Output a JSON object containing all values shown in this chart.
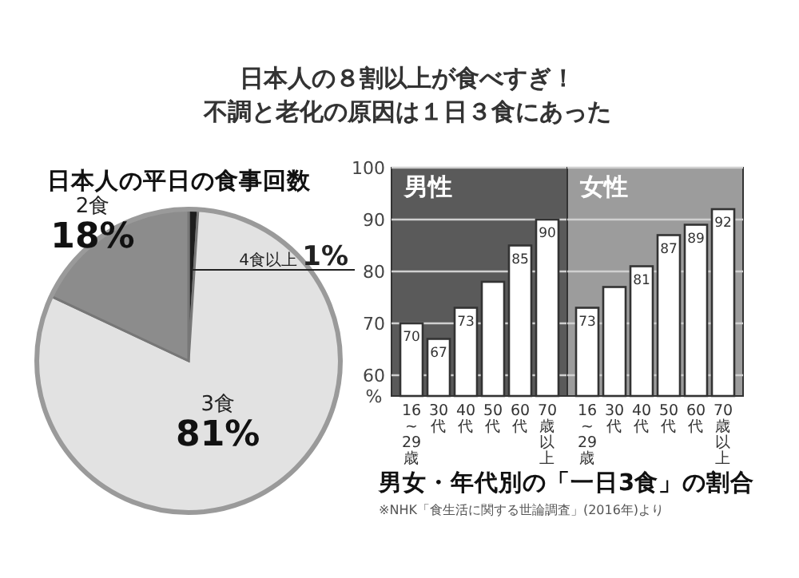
{
  "chart_data": [
    {
      "type": "pie",
      "title": "日本人の平日の食事回数",
      "categories": [
        "4食以上",
        "3食",
        "2食"
      ],
      "values": [
        1,
        81,
        18
      ],
      "colors": [
        "#1e1e1e",
        "#e2e2e2",
        "#8c8c8c"
      ],
      "value_labels": [
        "1%",
        "81%",
        "18%"
      ],
      "annotations": [
        "日本人の８割以上が食べすぎ！",
        "不調と老化の原因は１日３食にあった"
      ]
    },
    {
      "type": "bar",
      "title": "男性",
      "ylabel": "%",
      "categories": [
        "16~29歳",
        "30代",
        "40代",
        "50代",
        "60代",
        "70歳以上"
      ],
      "values": [
        70,
        67,
        73,
        78,
        85,
        90
      ],
      "value_labels": [
        "70",
        "67",
        "73",
        null,
        "85",
        "90"
      ],
      "color": "#ffffff",
      "ylim": [
        56,
        100
      ],
      "yticks": [
        60,
        70,
        80,
        90,
        100
      ],
      "grid": "y",
      "annotations": [
        "男女・年代別の「一日3食」の割合",
        "※NHK「食生活に関する世論調査」(2016年)より"
      ]
    },
    {
      "type": "bar",
      "title": "女性",
      "categories": [
        "16~29歳",
        "30代",
        "40代",
        "50代",
        "60代",
        "70歳以上"
      ],
      "values": [
        73,
        77,
        81,
        87,
        89,
        92
      ],
      "value_labels": [
        "73",
        null,
        "81",
        "87",
        "89",
        "92"
      ],
      "color": "#ffffff",
      "ylim": [
        56,
        100
      ],
      "yticks": [
        60,
        70,
        80,
        90,
        100
      ],
      "grid": "y",
      "tick_labels": "x"
    }
  ]
}
